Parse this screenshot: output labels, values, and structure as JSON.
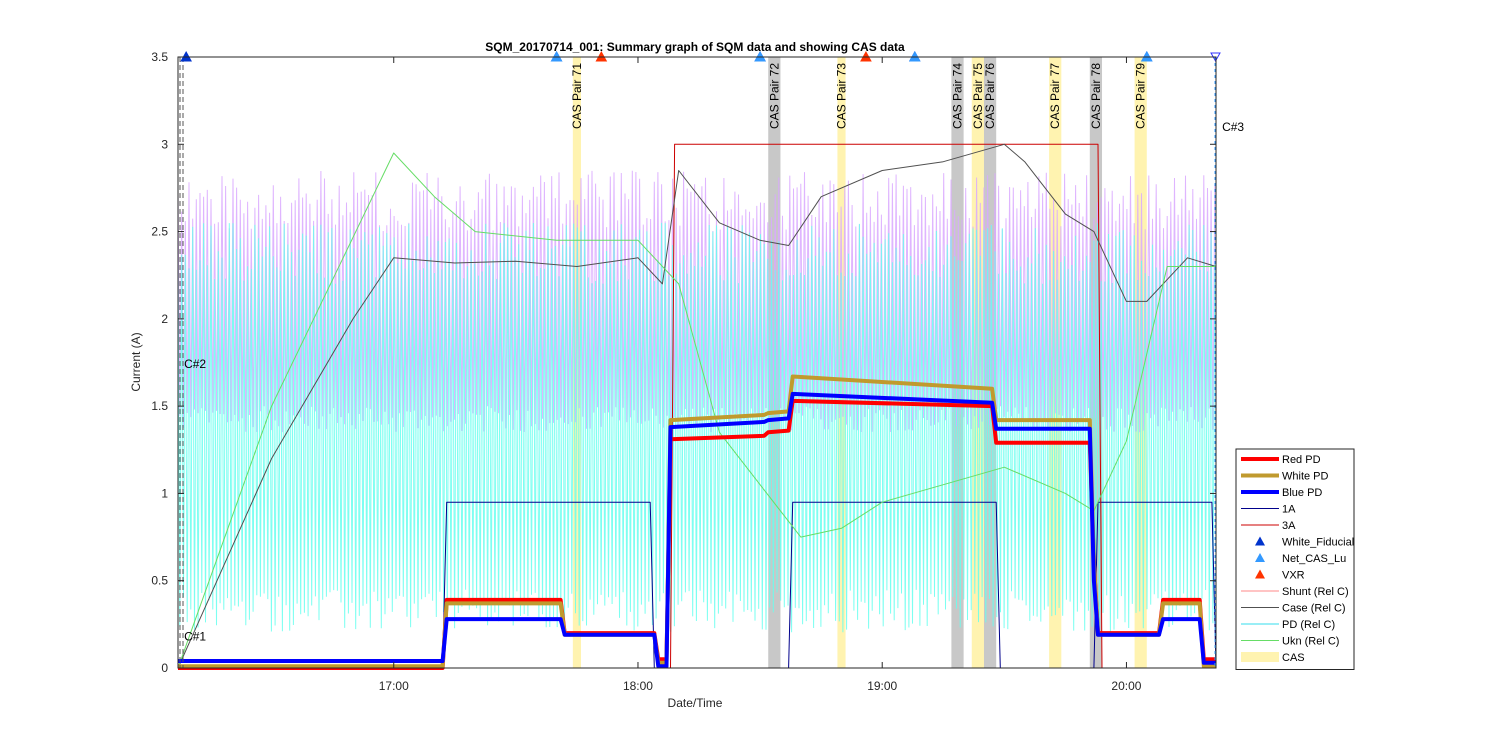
{
  "chart_data": {
    "type": "line",
    "title": "SQM_20170714_001: Summary graph of SQM data and showing CAS data",
    "xlabel": "Date/Time",
    "ylabel": "Current (A)",
    "xlim": [
      "16:07",
      "20:22"
    ],
    "ylim": [
      0,
      3.5
    ],
    "grid": false,
    "legend_position": "lower-right-outside",
    "x_ticks": [
      "17:00",
      "18:00",
      "19:00",
      "20:00"
    ],
    "y_ticks": [
      "0",
      "0.5",
      "1",
      "1.5",
      "2",
      "2.5",
      "3",
      "3.5"
    ],
    "cas_bands": [
      {
        "label": "CAS Pair 71",
        "start": "17:44",
        "end": "17:46",
        "color": "#fff3b0"
      },
      {
        "label": "CAS Pair 72",
        "start": "18:32",
        "end": "18:35",
        "color": "#c8c8c8"
      },
      {
        "label": "CAS Pair 73",
        "start": "18:49",
        "end": "18:51",
        "color": "#fff3b0"
      },
      {
        "label": "CAS Pair 74",
        "start": "19:17",
        "end": "19:20",
        "color": "#c8c8c8"
      },
      {
        "label": "CAS Pair 75",
        "start": "19:22",
        "end": "19:25",
        "color": "#fff3b0"
      },
      {
        "label": "CAS Pair 76",
        "start": "19:25",
        "end": "19:28",
        "color": "#c8c8c8"
      },
      {
        "label": "CAS Pair 77",
        "start": "19:41",
        "end": "19:44",
        "color": "#fff3b0"
      },
      {
        "label": "CAS Pair 78",
        "start": "19:51",
        "end": "19:54",
        "color": "#c8c8c8"
      },
      {
        "label": "CAS Pair 79",
        "start": "20:02",
        "end": "20:05",
        "color": "#fff3b0"
      }
    ],
    "annotations": [
      {
        "text": "C#1",
        "x": "16:08",
        "y": 0.18
      },
      {
        "text": "C#2",
        "x": "16:08",
        "y": 1.74
      },
      {
        "text": "C#3",
        "x": "20:23",
        "y": 3.1
      }
    ],
    "series": [
      {
        "name": "Red PD",
        "color": "#ff0000",
        "width": 4,
        "x": [
          "16:07",
          "17:12",
          "17:13",
          "17:41",
          "17:42",
          "18:04",
          "18:05",
          "18:07",
          "18:08",
          "18:31",
          "18:32",
          "18:37",
          "18:38",
          "19:27",
          "19:28",
          "19:51",
          "19:52",
          "19:53",
          "20:08",
          "20:09",
          "20:18",
          "20:19",
          "20:22"
        ],
        "y": [
          0.0,
          0.0,
          0.39,
          0.39,
          0.2,
          0.2,
          0.05,
          0.05,
          1.31,
          1.33,
          1.35,
          1.36,
          1.53,
          1.5,
          1.29,
          1.29,
          0.6,
          0.2,
          0.2,
          0.39,
          0.39,
          0.05,
          0.05
        ]
      },
      {
        "name": "White PD",
        "color": "#c09a2e",
        "width": 4,
        "x": [
          "16:07",
          "17:12",
          "17:13",
          "17:41",
          "17:42",
          "18:04",
          "18:05",
          "18:07",
          "18:08",
          "18:31",
          "18:32",
          "18:37",
          "18:38",
          "19:27",
          "19:28",
          "19:51",
          "19:52",
          "19:53",
          "20:08",
          "20:09",
          "20:18",
          "20:19",
          "20:22"
        ],
        "y": [
          0.01,
          0.01,
          0.37,
          0.37,
          0.19,
          0.19,
          0.03,
          0.03,
          1.42,
          1.45,
          1.46,
          1.47,
          1.67,
          1.6,
          1.42,
          1.42,
          0.6,
          0.19,
          0.19,
          0.37,
          0.37,
          0.01,
          0.01
        ]
      },
      {
        "name": "Blue PD",
        "color": "#0000ff",
        "width": 4,
        "x": [
          "16:07",
          "17:12",
          "17:13",
          "17:41",
          "17:42",
          "18:04",
          "18:05",
          "18:07",
          "18:08",
          "18:31",
          "18:32",
          "18:37",
          "18:38",
          "19:27",
          "19:28",
          "19:51",
          "19:52",
          "19:53",
          "20:08",
          "20:09",
          "20:18",
          "20:19",
          "20:22"
        ],
        "y": [
          0.04,
          0.04,
          0.28,
          0.28,
          0.19,
          0.19,
          0.01,
          0.01,
          1.38,
          1.41,
          1.42,
          1.43,
          1.57,
          1.52,
          1.37,
          1.37,
          0.5,
          0.19,
          0.19,
          0.28,
          0.28,
          0.03,
          0.03
        ]
      },
      {
        "name": "1A",
        "color": "#00008b",
        "width": 1,
        "x": [
          "16:07",
          "17:12",
          "17:13",
          "18:03",
          "18:04",
          "18:37",
          "18:38",
          "19:28",
          "19:29",
          "19:52",
          "19:53",
          "20:21",
          "20:22"
        ],
        "y": [
          0.0,
          0.0,
          0.95,
          0.95,
          0.0,
          0.0,
          0.95,
          0.95,
          0.0,
          0.0,
          0.95,
          0.95,
          0.0
        ]
      },
      {
        "name": "3A",
        "color": "#cc0000",
        "width": 1,
        "x": [
          "16:07",
          "18:08",
          "18:09",
          "19:53",
          "19:54",
          "20:22"
        ],
        "y": [
          0.0,
          0.0,
          3.0,
          3.0,
          0.0,
          0.0
        ]
      },
      {
        "name": "Case (Rel C)",
        "color": "#505050",
        "width": 1,
        "x": [
          "16:07",
          "16:30",
          "16:50",
          "17:00",
          "17:15",
          "17:30",
          "17:45",
          "18:00",
          "18:06",
          "18:10",
          "18:20",
          "18:30",
          "18:37",
          "18:45",
          "19:00",
          "19:15",
          "19:30",
          "19:35",
          "19:45",
          "19:52",
          "20:00",
          "20:05",
          "20:15",
          "20:22"
        ],
        "y": [
          0.0,
          1.2,
          2.0,
          2.35,
          2.32,
          2.33,
          2.3,
          2.35,
          2.2,
          2.85,
          2.55,
          2.45,
          2.42,
          2.7,
          2.85,
          2.9,
          3.0,
          2.9,
          2.6,
          2.5,
          2.1,
          2.1,
          2.35,
          2.3
        ]
      },
      {
        "name": "Ukn (Rel C)",
        "color": "#66dd66",
        "width": 1,
        "x": [
          "16:07",
          "16:30",
          "17:00",
          "17:10",
          "17:20",
          "17:40",
          "18:00",
          "18:10",
          "18:20",
          "18:40",
          "18:50",
          "19:00",
          "19:15",
          "19:30",
          "19:45",
          "19:52",
          "20:00",
          "20:10",
          "20:22"
        ],
        "y": [
          0.0,
          1.5,
          2.95,
          2.7,
          2.5,
          2.45,
          2.45,
          2.2,
          1.35,
          0.75,
          0.8,
          0.95,
          1.05,
          1.15,
          1.0,
          0.9,
          1.3,
          2.3,
          2.3
        ]
      },
      {
        "name": "Shunt (Rel C)",
        "color": "#d9a8ff",
        "width": 1,
        "x_start": "16:07",
        "x_end": "20:22",
        "oscillation": {
          "low": 1.35,
          "high": 2.85
        }
      },
      {
        "name": "PD (Rel C)",
        "color": "#66ffee",
        "width": 1,
        "x_start": "16:07",
        "x_end": "20:22",
        "oscillation": {
          "low": 0.2,
          "high": 2.55
        }
      }
    ],
    "markers": [
      {
        "name": "White_Fiducial",
        "color": "#0033cc",
        "symbol": "triangle-up",
        "x": [
          "16:09",
          "17:40",
          "18:30",
          "19:08",
          "20:05"
        ],
        "y": [
          3.5,
          3.5,
          3.5,
          3.5,
          3.5
        ]
      },
      {
        "name": "Net_CAS_Lu",
        "color": "#3399ff",
        "symbol": "triangle-up",
        "x": [
          "17:40",
          "18:30",
          "19:08",
          "20:05"
        ],
        "y": [
          3.5,
          3.5,
          3.5,
          3.5
        ]
      },
      {
        "name": "VXR",
        "color": "#ff3300",
        "symbol": "triangle-up",
        "x": [
          "17:51",
          "18:56"
        ],
        "y": [
          3.5,
          3.5
        ]
      }
    ],
    "legend": [
      {
        "label": "Red PD",
        "color": "#ff0000",
        "style": "thick-line"
      },
      {
        "label": "White PD",
        "color": "#c09a2e",
        "style": "thick-line"
      },
      {
        "label": "Blue PD",
        "color": "#0000ff",
        "style": "thick-line"
      },
      {
        "label": "1A",
        "color": "#00008b",
        "style": "line"
      },
      {
        "label": "3A",
        "color": "#cc0000",
        "style": "line"
      },
      {
        "label": "White_Fiducial",
        "color": "#0033cc",
        "style": "marker"
      },
      {
        "label": "Net_CAS_Lu",
        "color": "#3399ff",
        "style": "marker"
      },
      {
        "label": "VXR",
        "color": "#ff3300",
        "style": "marker"
      },
      {
        "label": "Shunt (Rel C)",
        "color": "#ff8888",
        "style": "line"
      },
      {
        "label": "Case (Rel C)",
        "color": "#505050",
        "style": "line"
      },
      {
        "label": "PD (Rel C)",
        "color": "#33ddee",
        "style": "line"
      },
      {
        "label": "Ukn (Rel C)",
        "color": "#66dd66",
        "style": "line"
      },
      {
        "label": "CAS",
        "color": "#fff3b0",
        "style": "patch"
      }
    ]
  }
}
